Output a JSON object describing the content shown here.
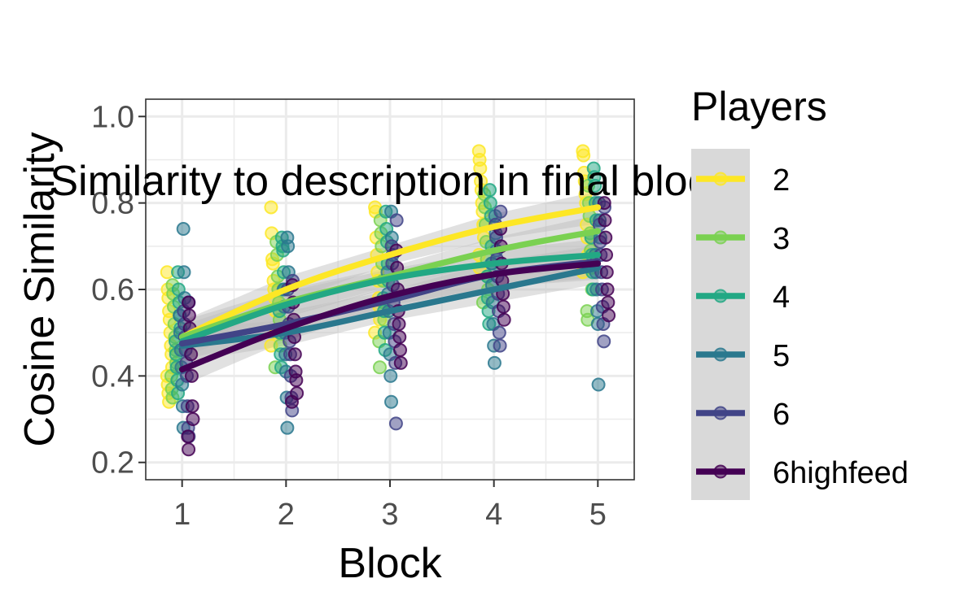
{
  "chart_data": {
    "type": "scatter",
    "title": "Similarity to description in final block",
    "xlabel": "Block",
    "ylabel": "Cosine Similarity",
    "x_ticks": [
      1,
      2,
      3,
      4,
      5
    ],
    "y_ticks": [
      0.2,
      0.4,
      0.6,
      0.8,
      1.0
    ],
    "y_tick_labels": [
      "0.2",
      "0.4",
      "0.6",
      "0.8",
      "1.0"
    ],
    "xlim": [
      0.65,
      5.35
    ],
    "ylim": [
      0.16,
      1.04
    ],
    "grid": true,
    "legend": {
      "title": "Players",
      "position": "right"
    },
    "colors": {
      "panel_border": "#333333",
      "grid": "#ebebeb",
      "ribbon": "#bdbdbd",
      "legend_key_bg": "#d9d9d9"
    },
    "series": [
      {
        "name": "2",
        "color": "#fde725",
        "fit": [
          0.49,
          0.6,
          0.68,
          0.745,
          0.79
        ],
        "points": [
          [
            1,
            [
              0.64,
              0.6,
              0.58,
              0.55,
              0.53,
              0.5,
              0.47,
              0.45,
              0.42,
              0.4,
              0.38,
              0.36,
              0.34
            ]
          ],
          [
            2,
            [
              0.79,
              0.73,
              0.67,
              0.66,
              0.62,
              0.6,
              0.58,
              0.55,
              0.5,
              0.47
            ]
          ],
          [
            3,
            [
              0.79,
              0.78,
              0.72,
              0.68,
              0.64,
              0.62,
              0.58,
              0.56,
              0.53,
              0.5
            ]
          ],
          [
            4,
            [
              0.92,
              0.9,
              0.88,
              0.85,
              0.83,
              0.8,
              0.78,
              0.75,
              0.72,
              0.68,
              0.65
            ]
          ],
          [
            5,
            [
              0.92,
              0.91,
              0.87,
              0.85,
              0.82,
              0.8,
              0.75,
              0.72,
              0.68,
              0.64
            ]
          ]
        ]
      },
      {
        "name": "3",
        "color": "#7ad151",
        "fit": [
          0.49,
          0.57,
          0.63,
          0.69,
          0.735
        ],
        "points": [
          [
            1,
            [
              0.61,
              0.59,
              0.56,
              0.52,
              0.49,
              0.46,
              0.43,
              0.4,
              0.37,
              0.35
            ]
          ],
          [
            2,
            [
              0.71,
              0.68,
              0.63,
              0.6,
              0.57,
              0.53,
              0.47,
              0.42
            ]
          ],
          [
            3,
            [
              0.76,
              0.73,
              0.7,
              0.66,
              0.62,
              0.57,
              0.53,
              0.48,
              0.42
            ]
          ],
          [
            4,
            [
              0.82,
              0.79,
              0.75,
              0.71,
              0.67,
              0.63,
              0.6,
              0.57
            ]
          ],
          [
            5,
            [
              0.84,
              0.8,
              0.77,
              0.73,
              0.69,
              0.65,
              0.6,
              0.55,
              0.53
            ]
          ]
        ]
      },
      {
        "name": "4",
        "color": "#22a884",
        "fit": [
          0.48,
          0.565,
          0.625,
          0.66,
          0.68
        ],
        "points": [
          [
            1,
            [
              0.64,
              0.6,
              0.57,
              0.54,
              0.51,
              0.48,
              0.45,
              0.42,
              0.39,
              0.36
            ]
          ],
          [
            2,
            [
              0.72,
              0.7,
              0.69,
              0.64,
              0.6,
              0.55,
              0.5,
              0.45,
              0.42
            ]
          ],
          [
            3,
            [
              0.78,
              0.74,
              0.71,
              0.66,
              0.62,
              0.58,
              0.55,
              0.5,
              0.46
            ]
          ],
          [
            4,
            [
              0.83,
              0.8,
              0.77,
              0.7,
              0.66,
              0.63,
              0.58,
              0.55,
              0.52
            ]
          ],
          [
            5,
            [
              0.88,
              0.86,
              0.84,
              0.8,
              0.76,
              0.72,
              0.68,
              0.64,
              0.6
            ]
          ]
        ]
      },
      {
        "name": "5",
        "color": "#2a788e",
        "fit": [
          0.47,
          0.5,
          0.55,
          0.6,
          0.65
        ],
        "points": [
          [
            1,
            [
              0.74,
              0.64,
              0.58,
              0.54,
              0.5,
              0.46,
              0.42,
              0.38,
              0.33,
              0.28
            ]
          ],
          [
            2,
            [
              0.72,
              0.7,
              0.64,
              0.6,
              0.56,
              0.5,
              0.45,
              0.41,
              0.35,
              0.28
            ]
          ],
          [
            3,
            [
              0.78,
              0.72,
              0.68,
              0.64,
              0.59,
              0.55,
              0.5,
              0.45,
              0.4,
              0.34
            ]
          ],
          [
            4,
            [
              0.77,
              0.73,
              0.69,
              0.66,
              0.61,
              0.57,
              0.52,
              0.47,
              0.43
            ]
          ],
          [
            5,
            [
              0.8,
              0.76,
              0.72,
              0.68,
              0.64,
              0.6,
              0.55,
              0.52,
              0.38
            ]
          ]
        ]
      },
      {
        "name": "6",
        "color": "#414487",
        "fit": [
          0.475,
          0.52,
          0.575,
          0.635,
          0.665
        ],
        "points": [
          [
            1,
            [
              0.57,
              0.55,
              0.52,
              0.49,
              0.46,
              0.43,
              0.4,
              0.33,
              0.28,
              0.26
            ]
          ],
          [
            2,
            [
              0.62,
              0.6,
              0.56,
              0.52,
              0.48,
              0.45,
              0.4,
              0.35,
              0.32
            ]
          ],
          [
            3,
            [
              0.76,
              0.7,
              0.66,
              0.61,
              0.57,
              0.52,
              0.48,
              0.43,
              0.29
            ]
          ],
          [
            4,
            [
              0.78,
              0.75,
              0.72,
              0.67,
              0.63,
              0.59,
              0.55,
              0.5,
              0.47
            ]
          ],
          [
            5,
            [
              0.79,
              0.75,
              0.71,
              0.68,
              0.64,
              0.6,
              0.56,
              0.52,
              0.48
            ]
          ]
        ]
      },
      {
        "name": "6highfeed",
        "color": "#440154",
        "fit": [
          0.415,
          0.51,
          0.585,
          0.635,
          0.66
        ],
        "points": [
          [
            1,
            [
              0.57,
              0.54,
              0.51,
              0.48,
              0.45,
              0.4,
              0.33,
              0.3,
              0.26,
              0.23
            ]
          ],
          [
            2,
            [
              0.61,
              0.57,
              0.53,
              0.49,
              0.45,
              0.41,
              0.39,
              0.36,
              0.34
            ]
          ],
          [
            3,
            [
              0.69,
              0.65,
              0.6,
              0.55,
              0.52,
              0.49,
              0.46,
              0.43
            ]
          ],
          [
            4,
            [
              0.74,
              0.7,
              0.66,
              0.62,
              0.59,
              0.56,
              0.53
            ]
          ],
          [
            5,
            [
              0.8,
              0.76,
              0.72,
              0.68,
              0.64,
              0.6,
              0.57,
              0.54
            ]
          ]
        ]
      }
    ]
  }
}
